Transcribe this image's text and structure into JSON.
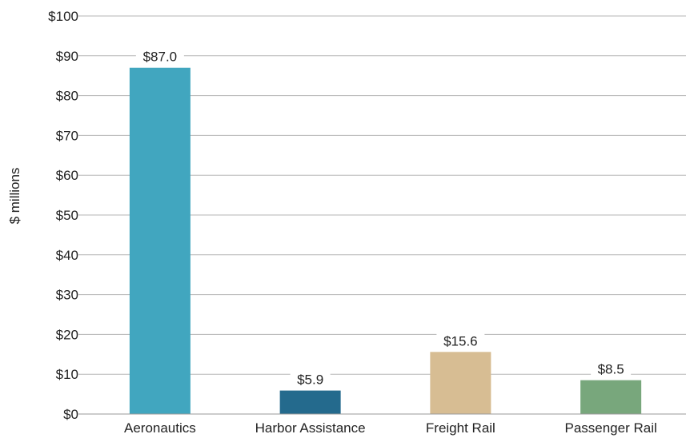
{
  "chart_data": {
    "type": "bar",
    "title": "",
    "xlabel": "",
    "ylabel": "$ millions",
    "ylim": [
      0,
      100
    ],
    "yticks": [
      {
        "value": 0,
        "label": "$0"
      },
      {
        "value": 10,
        "label": "$10"
      },
      {
        "value": 20,
        "label": "$20"
      },
      {
        "value": 30,
        "label": "$30"
      },
      {
        "value": 40,
        "label": "$40"
      },
      {
        "value": 50,
        "label": "$50"
      },
      {
        "value": 60,
        "label": "$60"
      },
      {
        "value": 70,
        "label": "$70"
      },
      {
        "value": 80,
        "label": "$80"
      },
      {
        "value": 90,
        "label": "$90"
      },
      {
        "value": 100,
        "label": "$100"
      }
    ],
    "grid": true,
    "legend": "none",
    "categories": [
      "Aeronautics",
      "Harbor Assistance",
      "Freight Rail",
      "Passenger Rail"
    ],
    "values": [
      87.0,
      5.9,
      15.6,
      8.5
    ],
    "data_labels": [
      "$87.0",
      "$5.9",
      "$15.6",
      "$8.5"
    ],
    "colors": [
      "#41a6bf",
      "#246a8d",
      "#d7bd93",
      "#78a77c"
    ]
  }
}
